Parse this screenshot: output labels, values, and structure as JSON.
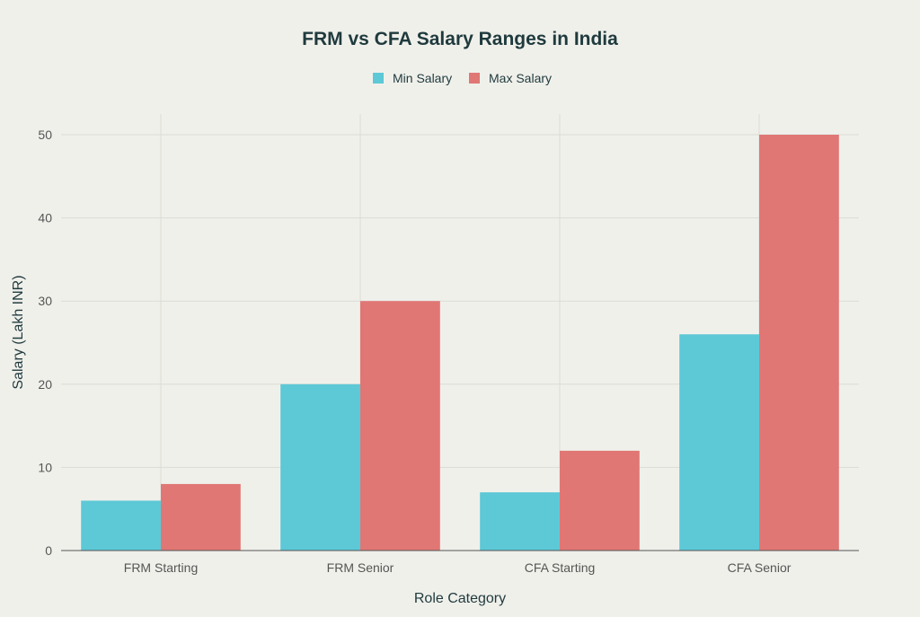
{
  "chart_data": {
    "type": "bar",
    "title": "FRM vs CFA Salary Ranges in India",
    "xlabel": "Role Category",
    "ylabel": "Salary (Lakh INR)",
    "categories": [
      "FRM Starting",
      "FRM Senior",
      "CFA Starting",
      "CFA Senior"
    ],
    "series": [
      {
        "name": "Min Salary",
        "values": [
          6,
          20,
          7,
          26
        ],
        "color": "#5dc8d6"
      },
      {
        "name": "Max Salary",
        "values": [
          8,
          30,
          12,
          50
        ],
        "color": "#e07774"
      }
    ],
    "ylim": [
      0,
      52.5
    ],
    "yticks": [
      0,
      10,
      20,
      30,
      40,
      50
    ],
    "grid": true,
    "legend_position": "top-center"
  }
}
